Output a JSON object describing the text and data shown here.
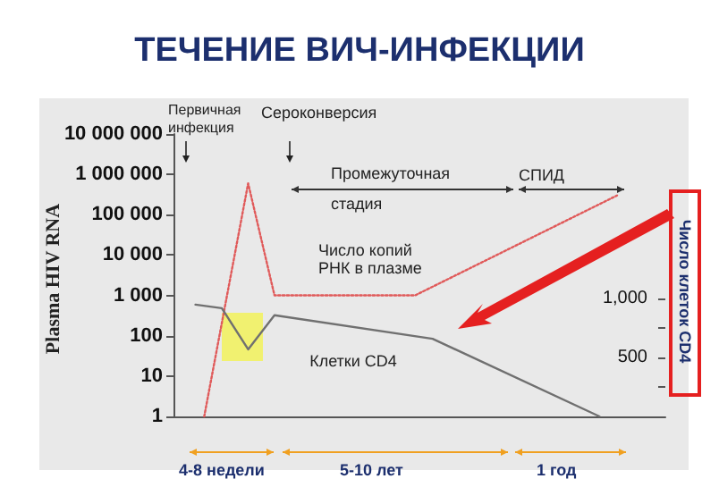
{
  "chart_data": {
    "type": "line",
    "title": "ТЕЧЕНИЕ ВИЧ-ИНФЕКЦИИ",
    "ylabel": "Plasma HIV RNA",
    "y2label": "Число клеток CD4",
    "categories": [
      null,
      null,
      null,
      null,
      null,
      null,
      null,
      null,
      null,
      null,
      null,
      null,
      null,
      null,
      null,
      null,
      null,
      null,
      null,
      null,
      null,
      null,
      null,
      null,
      null,
      null,
      null,
      null,
      null,
      null,
      null,
      null,
      null,
      null,
      null,
      null,
      null,
      null,
      null,
      null,
      null,
      null,
      null,
      null,
      null,
      null,
      null,
      null,
      null,
      null,
      null,
      null,
      null,
      null,
      null,
      null
    ],
    "series": [
      {
        "name": "Число копий РНК в плазме",
        "color": "#e05a5a",
        "line_style": "dotted",
        "values": [
          null,
          null,
          null,
          1,
          null,
          null,
          null,
          null,
          600000,
          null,
          null,
          1000,
          null,
          null,
          null,
          null,
          null,
          null,
          null,
          null,
          null,
          null,
          null,
          null,
          null,
          null,
          null,
          1000,
          null,
          null,
          null,
          null,
          null,
          null,
          null,
          null,
          null,
          null,
          null,
          null,
          null,
          null,
          null,
          null,
          null,
          null,
          null,
          null,
          null,
          null,
          300000,
          null,
          null,
          null,
          null,
          null
        ]
      },
      {
        "name": "Клетки CD4",
        "color": "#707070",
        "line_style": "solid",
        "axis": "y2",
        "values": [
          null,
          null,
          950,
          null,
          null,
          920,
          null,
          null,
          570,
          null,
          null,
          860,
          null,
          null,
          null,
          null,
          null,
          null,
          null,
          null,
          null,
          null,
          null,
          null,
          null,
          null,
          null,
          null,
          null,
          660,
          null,
          null,
          null,
          null,
          null,
          null,
          null,
          null,
          null,
          null,
          null,
          null,
          null,
          null,
          null,
          null,
          null,
          null,
          0,
          null,
          null,
          null,
          null,
          null,
          null,
          null
        ]
      }
    ],
    "log": "y",
    "ylim": [
      1,
      10000000
    ],
    "yticks": [
      {
        "value": 1,
        "label": "1"
      },
      {
        "value": 10,
        "label": "10"
      },
      {
        "value": 100,
        "label": "100"
      },
      {
        "value": 1000,
        "label": "1 000"
      },
      {
        "value": 10000,
        "label": "10 000"
      },
      {
        "value": 100000,
        "label": "100 000"
      },
      {
        "value": 1000000,
        "label": "1 000 000"
      },
      {
        "value": 10000000,
        "label": "10 000 000"
      }
    ],
    "y2lim": [
      0,
      2400
    ],
    "y2ticks": [
      {
        "value": 250,
        "label": null
      },
      {
        "value": 500,
        "label": "500"
      },
      {
        "value": 750,
        "label": null
      },
      {
        "value": 1000,
        "label": "1,000"
      }
    ],
    "tick_labels": "y",
    "marker": "none",
    "grid": false,
    "legend": false,
    "annotations": [
      "Первичная инфекция",
      "Сероконверсия",
      "Промежуточная стадия",
      "СПИД",
      "4-8 недели",
      "5-10 лет",
      "1 год"
    ]
  }
}
